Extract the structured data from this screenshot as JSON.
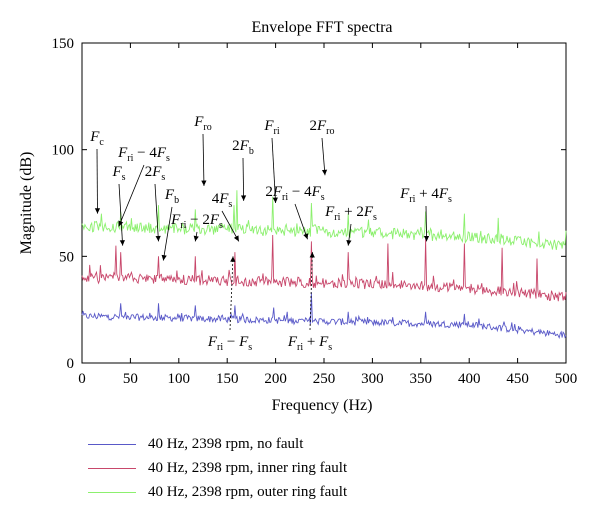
{
  "chart_data": {
    "type": "line",
    "title": "Envelope FFT spectra",
    "xlabel": "Frequency (Hz)",
    "ylabel": "Magnitude (dB)",
    "xlim": [
      0,
      500
    ],
    "ylim": [
      0,
      150
    ],
    "xticks": [
      "0",
      "50",
      "100",
      "150",
      "200",
      "250",
      "300",
      "350",
      "400",
      "450",
      "500"
    ],
    "yticks": [
      "0",
      "50",
      "100",
      "150"
    ],
    "grid": false,
    "legend_position": "bottom",
    "series": [
      {
        "name": "40 Hz, 2398 rpm, no fault",
        "color": "#5959c8",
        "baseline": [
          [
            0,
            22
          ],
          [
            100,
            21
          ],
          [
            200,
            20
          ],
          [
            300,
            19
          ],
          [
            400,
            18
          ],
          [
            500,
            13
          ]
        ],
        "noise": 1.6,
        "peaks": [
          [
            40,
            28
          ],
          [
            79,
            28
          ],
          [
            117,
            27
          ],
          [
            158,
            27
          ],
          [
            198,
            26
          ],
          [
            237,
            33
          ],
          [
            275,
            24
          ],
          [
            355,
            24
          ],
          [
            395,
            23
          ]
        ]
      },
      {
        "name": "40 Hz, 2398 rpm, inner ring fault",
        "color": "#c8476b",
        "baseline": [
          [
            0,
            40
          ],
          [
            100,
            39
          ],
          [
            200,
            38
          ],
          [
            300,
            37
          ],
          [
            400,
            35
          ],
          [
            500,
            31
          ]
        ],
        "noise": 2.4,
        "peaks": [
          [
            8,
            46
          ],
          [
            35,
            55
          ],
          [
            40,
            52
          ],
          [
            79,
            50
          ],
          [
            117,
            50
          ],
          [
            158,
            52
          ],
          [
            197,
            60
          ],
          [
            237,
            57
          ],
          [
            275,
            52
          ],
          [
            316,
            56
          ],
          [
            355,
            58
          ],
          [
            395,
            56
          ],
          [
            434,
            54
          ],
          [
            470,
            49
          ]
        ]
      },
      {
        "name": "40 Hz, 2398 rpm, outer ring fault",
        "color": "#8cf06e",
        "baseline": [
          [
            0,
            64
          ],
          [
            100,
            63
          ],
          [
            200,
            62
          ],
          [
            300,
            61
          ],
          [
            400,
            59
          ],
          [
            500,
            55
          ]
        ],
        "noise": 2.6,
        "peaks": [
          [
            20,
            70
          ],
          [
            40,
            71
          ],
          [
            79,
            74
          ],
          [
            117,
            72
          ],
          [
            157,
            74
          ],
          [
            160,
            81
          ],
          [
            197,
            78
          ],
          [
            237,
            75
          ],
          [
            275,
            70
          ],
          [
            355,
            71
          ],
          [
            395,
            70
          ],
          [
            430,
            68
          ],
          [
            500,
            62
          ]
        ]
      }
    ],
    "annotations": [
      {
        "text": "F",
        "sub": "c",
        "pre": "",
        "post": "",
        "tip": [
          16,
          70
        ]
      },
      {
        "text": "F",
        "sub": "ri",
        "pre": "",
        "post": " − 4F",
        "post_sub": "s",
        "tip": [
          38,
          64
        ]
      },
      {
        "text": "F",
        "sub": "s",
        "pre": "",
        "post": "",
        "tip": [
          42,
          55
        ]
      },
      {
        "text": "F",
        "sub": "s",
        "pre": "2",
        "post": "",
        "tip": [
          79,
          57
        ]
      },
      {
        "text": "F",
        "sub": "b",
        "pre": "",
        "post": "",
        "tip": [
          84,
          48
        ]
      },
      {
        "text": "F",
        "sub": "ri",
        "pre": "",
        "post": " − 2F",
        "post_sub": "s",
        "tip": [
          117,
          57
        ]
      },
      {
        "text": "F",
        "sub": "ro",
        "pre": "",
        "post": "",
        "tip": [
          126,
          83
        ]
      },
      {
        "text": "F",
        "sub": "s",
        "pre": "4",
        "post": "",
        "tip": [
          162,
          57
        ]
      },
      {
        "text": "F",
        "sub": "b",
        "pre": "2",
        "post": "",
        "tip": [
          167,
          76
        ]
      },
      {
        "text": "F",
        "sub": "ri",
        "pre": "",
        "post": "",
        "tip": [
          200,
          75
        ]
      },
      {
        "text": "F",
        "sub": "ri",
        "pre": "2",
        "post": " − 4F",
        "post_sub": "s",
        "tip": [
          233,
          58
        ]
      },
      {
        "text": "F",
        "sub": "ro",
        "pre": "2",
        "post": "",
        "tip": [
          251,
          88
        ]
      },
      {
        "text": "F",
        "sub": "ri",
        "pre": "",
        "post": " + 2F",
        "post_sub": "s",
        "tip": [
          275,
          55
        ]
      },
      {
        "text": "F",
        "sub": "ri",
        "pre": "",
        "post": " + 4F",
        "post_sub": "s",
        "tip": [
          356,
          57
        ]
      },
      {
        "text": "F",
        "sub": "ri",
        "pre": "",
        "post": " − F",
        "post_sub": "s",
        "tip": [
          156,
          50
        ]
      },
      {
        "text": "F",
        "sub": "ri",
        "pre": "",
        "post": " + F",
        "post_sub": "s",
        "tip": [
          238,
          52
        ]
      }
    ]
  }
}
